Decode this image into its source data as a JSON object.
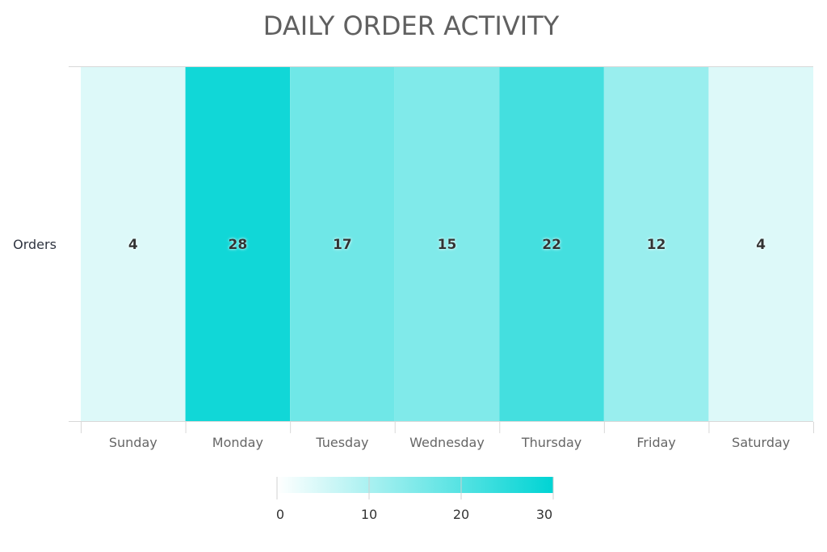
{
  "chart_data": {
    "type": "heatmap",
    "title": "DAILY ORDER ACTIVITY",
    "x_categories": [
      "Sunday",
      "Monday",
      "Tuesday",
      "Wednesday",
      "Thursday",
      "Friday",
      "Saturday"
    ],
    "y_categories": [
      "Orders"
    ],
    "values": [
      [
        4,
        28,
        17,
        15,
        22,
        12,
        4
      ]
    ],
    "color_scale": {
      "min": 0,
      "max": 30,
      "min_color": "#ffffff",
      "max_color": "#00d4d4"
    },
    "legend": {
      "ticks": [
        0,
        10,
        20,
        30
      ],
      "placement": "bottom-center"
    },
    "grid": false
  }
}
